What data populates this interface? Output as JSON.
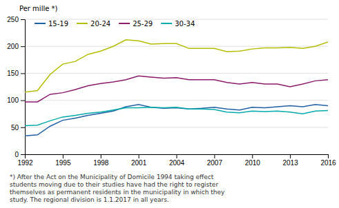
{
  "chart_data": {
    "type": "line",
    "ylabel": "Per mille *)",
    "footnote": "*) After the Act on the Municipality of Domicile 1994 taking effect\nstudents moving due to their studies have had the right to register\nthemselves as permanent residents in the municipality in which they\nstudy. The regional division is 1.1.2017 in all years.",
    "x": [
      1992,
      1993,
      1994,
      1995,
      1996,
      1997,
      1998,
      1999,
      2000,
      2001,
      2002,
      2003,
      2004,
      2005,
      2006,
      2007,
      2008,
      2009,
      2010,
      2011,
      2012,
      2013,
      2014,
      2015,
      2016
    ],
    "series": [
      {
        "name": "15-19",
        "color": "#1f5fa6",
        "values": [
          34,
          36,
          52,
          63,
          67,
          72,
          76,
          80,
          88,
          92,
          87,
          85,
          86,
          84,
          85,
          87,
          84,
          82,
          87,
          86,
          88,
          90,
          88,
          92,
          90
        ]
      },
      {
        "name": "20-24",
        "color": "#b5bd00",
        "values": [
          115,
          118,
          148,
          167,
          172,
          185,
          191,
          200,
          212,
          210,
          204,
          205,
          205,
          196,
          196,
          196,
          190,
          191,
          195,
          197,
          197,
          198,
          196,
          200,
          208
        ]
      },
      {
        "name": "25-29",
        "color": "#8b1a6b",
        "values": [
          97,
          97,
          111,
          114,
          120,
          127,
          131,
          134,
          138,
          145,
          143,
          141,
          142,
          138,
          138,
          138,
          133,
          130,
          133,
          130,
          130,
          125,
          130,
          136,
          138
        ]
      },
      {
        "name": "30-34",
        "color": "#00aaaa",
        "values": [
          53,
          54,
          62,
          69,
          72,
          76,
          78,
          82,
          86,
          86,
          87,
          86,
          87,
          84,
          84,
          83,
          78,
          77,
          80,
          79,
          80,
          78,
          75,
          80,
          81
        ]
      }
    ],
    "xlim": [
      1992,
      2016
    ],
    "xticks": [
      1992,
      1995,
      1998,
      2001,
      2004,
      2007,
      2010,
      2013,
      2016
    ],
    "ylim": [
      0,
      250
    ],
    "yticks": [
      0,
      50,
      100,
      150,
      200,
      250
    ],
    "grid": true,
    "legend": "upper left"
  }
}
